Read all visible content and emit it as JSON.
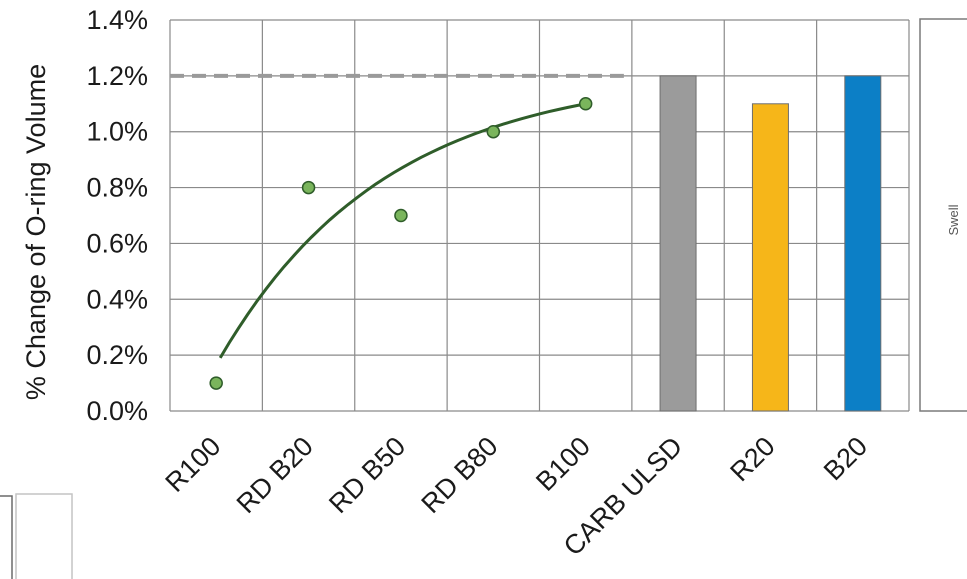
{
  "chart_data": {
    "type": "bar",
    "ylabel": "% Change of O-ring Volume",
    "ylim": [
      0,
      1.4
    ],
    "yticks": [
      "0.0%",
      "0.2%",
      "0.4%",
      "0.6%",
      "0.8%",
      "1.0%",
      "1.2%",
      "1.4%"
    ],
    "categories": [
      "R100",
      "RD B20",
      "RD B50",
      "RD B80",
      "B100",
      "CARB ULSD",
      "R20",
      "B20"
    ],
    "scatter_series": {
      "categories": [
        "R100",
        "RD B20",
        "RD B50",
        "RD B80",
        "B100"
      ],
      "values": [
        0.1,
        0.8,
        0.7,
        1.0,
        1.1
      ],
      "color": "#7ab55c"
    },
    "trend_line": {
      "color": "#2f5d2a",
      "from_category": "R100",
      "to_category": "B100",
      "start_value": 0.19,
      "end_value": 1.1
    },
    "reference_line": {
      "value": 1.2,
      "style": "dashed",
      "color": "#9a9a9a"
    },
    "bars": [
      {
        "category": "CARB ULSD",
        "value": 1.2,
        "color": "#9b9b9b"
      },
      {
        "category": "R20",
        "value": 1.1,
        "color": "#f6b619"
      },
      {
        "category": "B20",
        "value": 1.2,
        "color": "#0c7fc6"
      }
    ],
    "grid": true,
    "side_panel_label": "Swell"
  }
}
